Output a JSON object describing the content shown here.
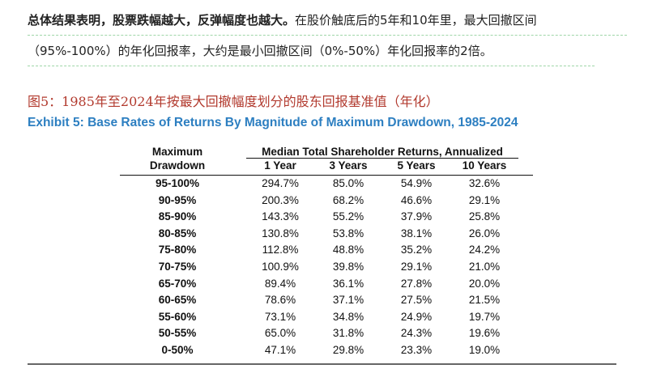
{
  "paragraph": {
    "bold_lead": "总体结果表明，股票跌幅越大，反弹幅度也越大。",
    "line1_rest": "在股价触底后的5年和10年里，最大回撤区间",
    "line2": "（95%-100%）的年化回报率，大约是最小回撤区间（0%-50%）年化回报率的2倍。"
  },
  "figure": {
    "title_cn": "图5：1985年至2024年按最大回撤幅度划分的股东回报基准值（年化）",
    "title_en": "Exhibit 5: Base Rates of Returns By Magnitude of Maximum Drawdown, 1985-2024"
  },
  "table": {
    "row_header_line1": "Maximum",
    "row_header_line2": "Drawdown",
    "group_header": "Median Total Shareholder Returns, Annualized",
    "columns": [
      "1 Year",
      "3 Years",
      "5 Years",
      "10 Years"
    ],
    "rows": [
      {
        "label": "95-100%",
        "values": [
          "294.7%",
          "85.0%",
          "54.9%",
          "32.6%"
        ]
      },
      {
        "label": "90-95%",
        "values": [
          "200.3%",
          "68.2%",
          "46.6%",
          "29.1%"
        ]
      },
      {
        "label": "85-90%",
        "values": [
          "143.3%",
          "55.2%",
          "37.9%",
          "25.8%"
        ]
      },
      {
        "label": "80-85%",
        "values": [
          "130.8%",
          "53.8%",
          "38.1%",
          "26.0%"
        ]
      },
      {
        "label": "75-80%",
        "values": [
          "112.8%",
          "48.8%",
          "35.2%",
          "24.2%"
        ]
      },
      {
        "label": "70-75%",
        "values": [
          "100.9%",
          "39.8%",
          "29.1%",
          "21.0%"
        ]
      },
      {
        "label": "65-70%",
        "values": [
          "89.4%",
          "36.1%",
          "27.8%",
          "20.0%"
        ]
      },
      {
        "label": "60-65%",
        "values": [
          "78.6%",
          "37.1%",
          "27.5%",
          "21.5%"
        ]
      },
      {
        "label": "55-60%",
        "values": [
          "73.1%",
          "34.8%",
          "24.9%",
          "19.7%"
        ]
      },
      {
        "label": "50-55%",
        "values": [
          "65.0%",
          "31.8%",
          "24.3%",
          "19.6%"
        ]
      },
      {
        "label": "0-50%",
        "values": [
          "47.1%",
          "29.8%",
          "23.3%",
          "19.0%"
        ]
      }
    ]
  }
}
